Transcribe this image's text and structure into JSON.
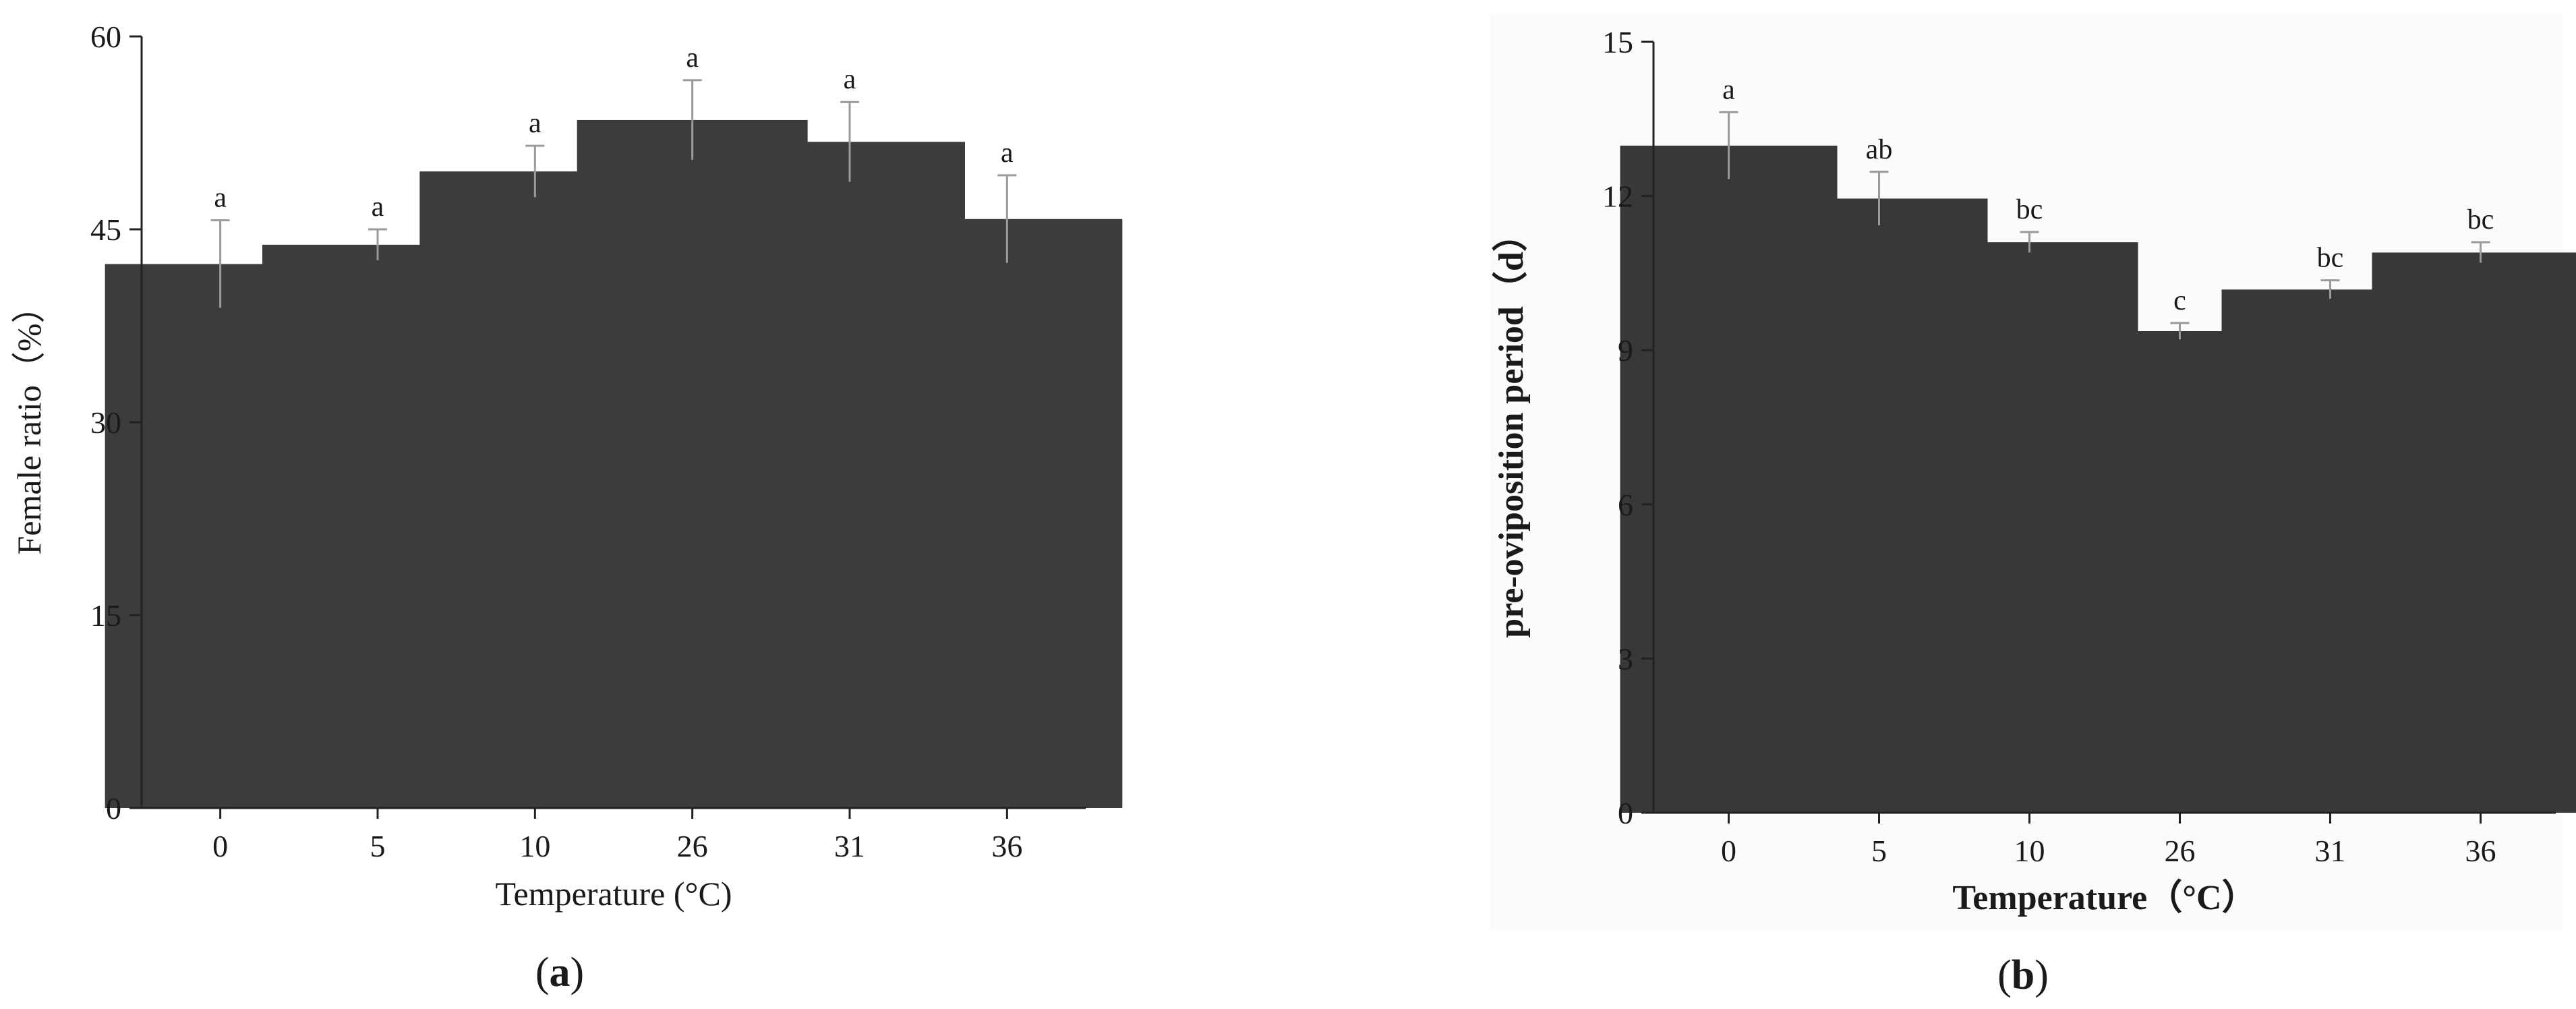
{
  "chart_data": [
    {
      "type": "bar",
      "categories": [
        "0",
        "5",
        "10",
        "26",
        "31",
        "36"
      ],
      "values": [
        42.3,
        43.8,
        49.5,
        53.5,
        51.8,
        45.8
      ],
      "errors": [
        3.4,
        1.2,
        2.0,
        3.1,
        3.1,
        3.4
      ],
      "significance": [
        "a",
        "a",
        "a",
        "a",
        "a",
        "a"
      ],
      "xlabel": "Temperature (°C)",
      "ylabel": "Female ratio（%）",
      "ylim": [
        0,
        60
      ],
      "yticks": [
        "0",
        "15",
        "30",
        "45",
        "60"
      ],
      "panel_label": "a",
      "bar_color": "#3c3c3c",
      "grid": false
    },
    {
      "type": "bar",
      "categories": [
        "0",
        "5",
        "10",
        "26",
        "31",
        "36"
      ],
      "values": [
        12.98,
        11.95,
        11.1,
        9.37,
        10.18,
        10.9
      ],
      "errors": [
        0.65,
        0.52,
        0.2,
        0.16,
        0.18,
        0.2
      ],
      "significance": [
        "a",
        "ab",
        "bc",
        "c",
        "bc",
        "bc"
      ],
      "xlabel": "Temperature（°C）",
      "ylabel": "pre-oviposition period（d）",
      "ylim": [
        0,
        15
      ],
      "yticks": [
        "0",
        "3",
        "6",
        "9",
        "12",
        "15"
      ],
      "panel_label": "b",
      "bar_color": "#383838",
      "grid": false
    }
  ]
}
